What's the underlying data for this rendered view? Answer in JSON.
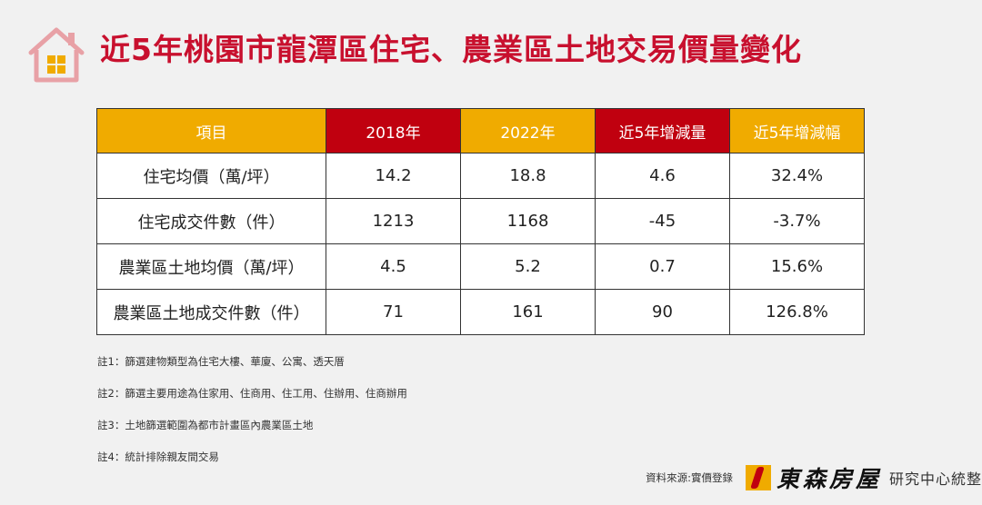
{
  "header": {
    "title": "近5年桃園市龍潭區住宅、農業區土地交易價量變化",
    "icon": "house-icon"
  },
  "colors": {
    "title": "#c8102e",
    "header_yellow": "#f0ab00",
    "header_red": "#c0000f",
    "increase": "#d42b2b",
    "decrease": "#2aa14a"
  },
  "table": {
    "headers": [
      "項目",
      "2018年",
      "2022年",
      "近5年增減量",
      "近5年增減幅"
    ],
    "rows": [
      {
        "item": "住宅均價（萬/坪）",
        "y2018": "14.2",
        "y2022": "18.8",
        "change": "4.6",
        "pct": "32.4%",
        "direction": "up"
      },
      {
        "item": "住宅成交件數（件）",
        "y2018": "1213",
        "y2022": "1168",
        "change": "-45",
        "pct": "-3.7%",
        "direction": "down"
      },
      {
        "item": "農業區土地均價（萬/坪）",
        "y2018": "4.5",
        "y2022": "5.2",
        "change": "0.7",
        "pct": "15.6%",
        "direction": "up"
      },
      {
        "item": "農業區土地成交件數（件）",
        "y2018": "71",
        "y2022": "161",
        "change": "90",
        "pct": "126.8%",
        "direction": "up"
      }
    ]
  },
  "notes": [
    "註1：篩選建物類型為住宅大樓、華廈、公寓、透天厝",
    "註2：篩選主要用途為住家用、住商用、住工用、住辦用、住商辦用",
    "註3：土地篩選範圍為都市計畫區內農業區土地",
    "註4：統計排除親友間交易"
  ],
  "footer": {
    "source": "資料來源:實價登錄",
    "logo_name": "東森房屋",
    "logo_suffix": "研究中心統整"
  }
}
